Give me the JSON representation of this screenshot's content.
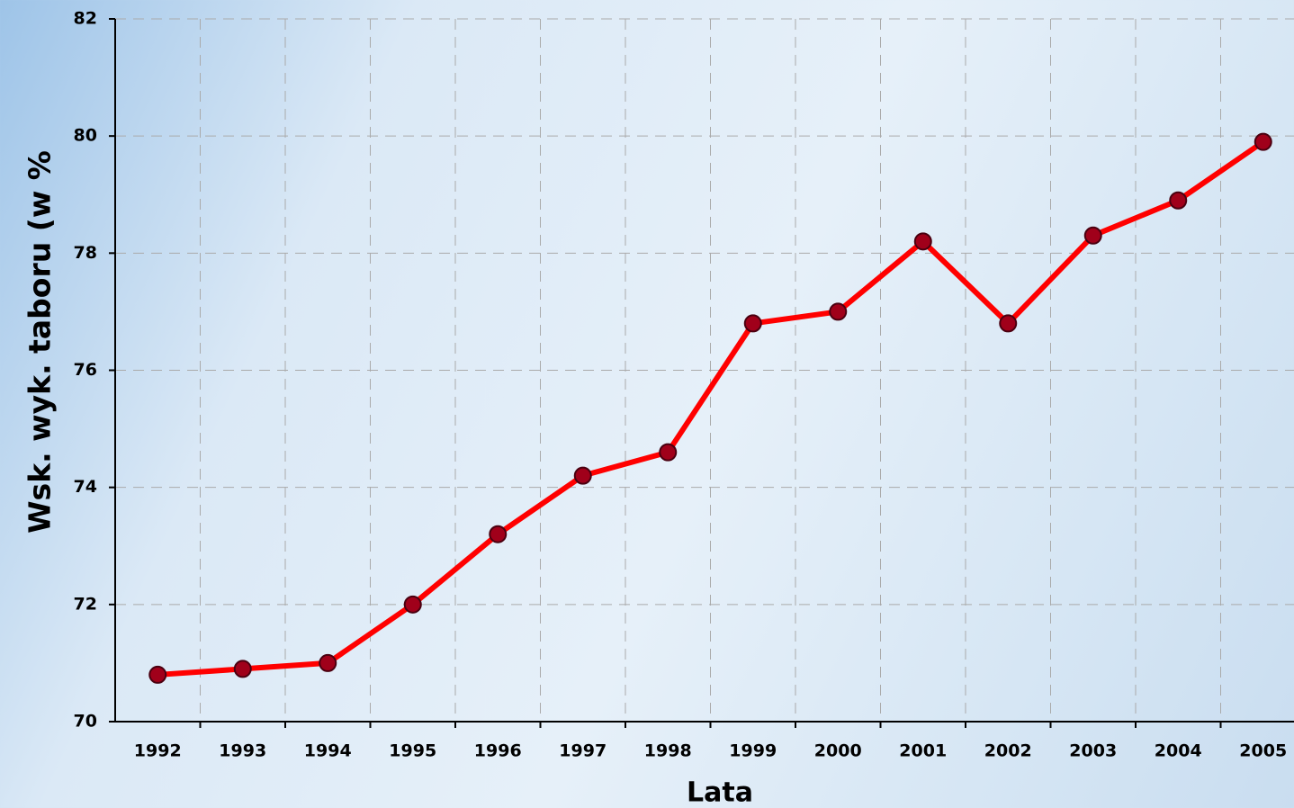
{
  "chart_data": {
    "type": "line",
    "x_label": "Lata",
    "y_label": "Wsk. wyk. taboru (w %",
    "categories": [
      "1992",
      "1993",
      "1994",
      "1995",
      "1996",
      "1997",
      "1998",
      "1999",
      "2000",
      "2001",
      "2002",
      "2003",
      "2004",
      "2005"
    ],
    "series": [
      {
        "color": "#ff0000",
        "values": [
          70.8,
          70.9,
          71.0,
          72.0,
          73.2,
          74.2,
          74.6,
          76.8,
          77.0,
          78.2,
          76.8,
          78.3,
          78.9,
          79.9
        ]
      }
    ],
    "ylim": [
      70,
      82
    ],
    "yticks": [
      70,
      72,
      74,
      76,
      78,
      80,
      82
    ],
    "grid": true
  }
}
